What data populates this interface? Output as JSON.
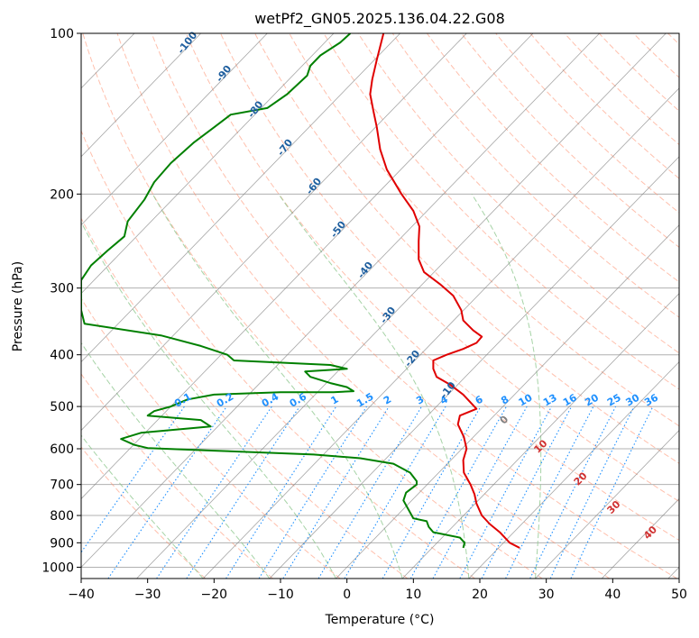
{
  "chart_data": {
    "type": "line",
    "title": "wetPf2_GN05.2025.136.04.22.G08",
    "xlabel": "Temperature (°C)",
    "ylabel": "Pressure (hPa)",
    "xlim": [
      -40,
      50
    ],
    "ylim": [
      1050,
      100
    ],
    "y_scale": "log",
    "x_ticks": [
      -40,
      -30,
      -20,
      -10,
      0,
      10,
      20,
      30,
      40,
      50
    ],
    "x_tick_labels": [
      "−40",
      "−30",
      "−20",
      "−10",
      "0",
      "10",
      "20",
      "30",
      "40",
      "50"
    ],
    "y_ticks": [
      1000,
      900,
      800,
      700,
      600,
      500,
      400,
      300,
      200,
      100
    ],
    "y_tick_labels": [
      "1000",
      "900",
      "800",
      "700",
      "600",
      "500",
      "400",
      "300",
      "200",
      "100"
    ],
    "grid": true,
    "series": [
      {
        "color": "#e00000",
        "points": [
          [
            26.0,
            920
          ],
          [
            24.5,
            900
          ],
          [
            23.0,
            860
          ],
          [
            21.5,
            830
          ],
          [
            20.3,
            800
          ],
          [
            19.5,
            760
          ],
          [
            19.2,
            730
          ],
          [
            18.6,
            700
          ],
          [
            17.6,
            665
          ],
          [
            17.5,
            630
          ],
          [
            18.0,
            600
          ],
          [
            17.6,
            570
          ],
          [
            16.7,
            540
          ],
          [
            17.0,
            520
          ],
          [
            19.5,
            505
          ],
          [
            17.5,
            475
          ],
          [
            15.5,
            455
          ],
          [
            13.5,
            440
          ],
          [
            13.0,
            425
          ],
          [
            13.0,
            410
          ],
          [
            15.0,
            400
          ],
          [
            17.5,
            390
          ],
          [
            19.5,
            380
          ],
          [
            20.3,
            370
          ],
          [
            19.0,
            360
          ],
          [
            17.5,
            345
          ],
          [
            17.2,
            330
          ],
          [
            16.0,
            310
          ],
          [
            14.0,
            295
          ],
          [
            11.6,
            280
          ],
          [
            10.8,
            265
          ],
          [
            10.8,
            245
          ],
          [
            10.9,
            230
          ],
          [
            10.0,
            215
          ],
          [
            8.2,
            200
          ],
          [
            6.0,
            180
          ],
          [
            5.0,
            165
          ],
          [
            4.5,
            150
          ],
          [
            4.0,
            140
          ],
          [
            3.5,
            130
          ],
          [
            3.8,
            122
          ],
          [
            4.5,
            112
          ],
          [
            5.5,
            100
          ]
        ]
      },
      {
        "color": "#008000",
        "points": [
          [
            17.5,
            920
          ],
          [
            17.7,
            900
          ],
          [
            17.0,
            880
          ],
          [
            13.0,
            860
          ],
          [
            12.3,
            840
          ],
          [
            12.0,
            820
          ],
          [
            10.0,
            810
          ],
          [
            9.5,
            790
          ],
          [
            8.5,
            750
          ],
          [
            8.9,
            725
          ],
          [
            10.5,
            700
          ],
          [
            10.5,
            690
          ],
          [
            9.5,
            665
          ],
          [
            7.0,
            640
          ],
          [
            2.0,
            625
          ],
          [
            -5.0,
            615
          ],
          [
            -20.0,
            605
          ],
          [
            -30.0,
            598
          ],
          [
            -32.0,
            590
          ],
          [
            -34.0,
            575
          ],
          [
            -31.0,
            560
          ],
          [
            -20.5,
            545
          ],
          [
            -22.0,
            530
          ],
          [
            -30.0,
            520
          ],
          [
            -29.0,
            510
          ],
          [
            -26.5,
            500
          ],
          [
            -24.0,
            485
          ],
          [
            -20.0,
            475
          ],
          [
            -10.0,
            470
          ],
          [
            -2.0,
            470
          ],
          [
            1.0,
            468
          ],
          [
            0.0,
            460
          ],
          [
            -2.5,
            452
          ],
          [
            -5.5,
            440
          ],
          [
            -6.3,
            430
          ],
          [
            0.0,
            425
          ],
          [
            -2.5,
            418
          ],
          [
            -17.0,
            410
          ],
          [
            -18.0,
            400
          ],
          [
            -22.0,
            385
          ],
          [
            -28.0,
            368
          ],
          [
            -39.5,
            350
          ],
          [
            -40.0,
            330
          ],
          [
            -40.0,
            300
          ],
          [
            -40.0,
            290
          ],
          [
            -38.5,
            272
          ],
          [
            -36.0,
            255
          ],
          [
            -33.5,
            240
          ],
          [
            -33.0,
            225
          ],
          [
            -30.5,
            205
          ],
          [
            -29.0,
            190
          ],
          [
            -26.5,
            175
          ],
          [
            -23.0,
            160
          ],
          [
            -20.0,
            150
          ],
          [
            -17.5,
            142
          ],
          [
            -12.0,
            138
          ],
          [
            -9.0,
            130
          ],
          [
            -6.0,
            120
          ],
          [
            -5.5,
            115
          ],
          [
            -4.0,
            110
          ],
          [
            -1.0,
            104
          ],
          [
            0.5,
            100
          ]
        ]
      }
    ],
    "isotherms": {
      "color": "#808080",
      "values": [
        -140,
        -130,
        -120,
        -110,
        -100,
        -90,
        -80,
        -70,
        -60,
        -50,
        -40,
        -30,
        -20,
        -10,
        0,
        10,
        20,
        30,
        40,
        50
      ]
    },
    "dry_adiabats": {
      "color": "#ff8c69",
      "theta_k": [
        250,
        260,
        270,
        280,
        290,
        300,
        310,
        320,
        330,
        340,
        350,
        360,
        370,
        380,
        390,
        400,
        410,
        420,
        430,
        440,
        450,
        460,
        470,
        480,
        490,
        500,
        510,
        520,
        530,
        540
      ]
    },
    "moist_adiabats": {
      "color": "#90c890",
      "start_temps_c": [
        -20,
        -10,
        0,
        10,
        20,
        30
      ]
    },
    "isohumes": {
      "color": "#1e90ff",
      "labels": [
        "0.1",
        "0.2",
        "0.4",
        "0.6",
        "1",
        "1.5",
        "2",
        "3",
        "4",
        "6",
        "8",
        "10",
        "13",
        "16",
        "20",
        "25",
        "30",
        "36"
      ],
      "values": [
        0.1,
        0.2,
        0.4,
        0.6,
        1,
        1.5,
        2,
        3,
        4,
        6,
        8,
        10,
        13,
        16,
        20,
        25,
        30,
        36
      ]
    },
    "isotherm_labels": {
      "color": "#1f5f9f",
      "labels": [
        "-100",
        "-90",
        "-80",
        "-70",
        "-60",
        "-50",
        "-40",
        "-30",
        "-20",
        "-10"
      ],
      "values": [
        -100,
        -90,
        -80,
        -70,
        -60,
        -50,
        -40,
        -30,
        -20,
        -10
      ]
    },
    "wetbulb_labels": {
      "color": "#d03030",
      "labels": [
        "10",
        "20",
        "30",
        "40"
      ],
      "values": [
        10,
        20,
        30,
        40
      ]
    },
    "zero_label": {
      "label": "0",
      "color": "#808080"
    }
  }
}
